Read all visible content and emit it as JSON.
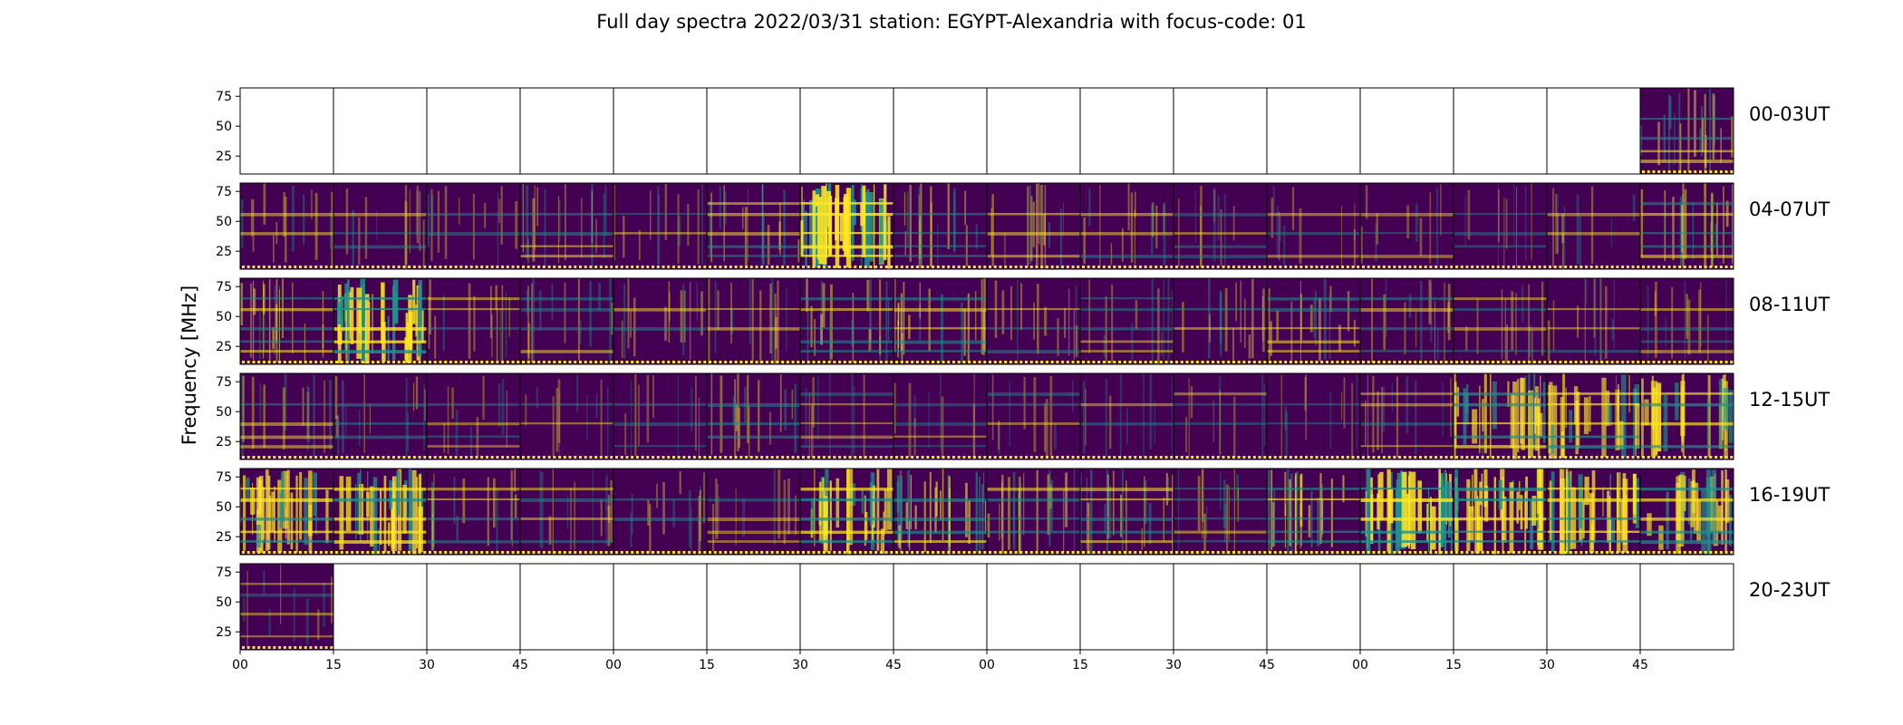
{
  "chart_data": {
    "type": "heatmap",
    "title": "Full day spectra 2022/03/31 station: EGYPT-Alexandria with focus-code: 01",
    "xlabel": "",
    "ylabel": "Frequency [MHz]",
    "ylim": [
      10,
      82
    ],
    "y_ticks": [
      "75",
      "50",
      "25"
    ],
    "y_tick_values": [
      75,
      50,
      25
    ],
    "x_ticks": [
      "00",
      "15",
      "30",
      "45",
      "00",
      "15",
      "30",
      "45",
      "00",
      "15",
      "30",
      "45",
      "00",
      "15",
      "30",
      "45"
    ],
    "colormap": "viridis",
    "colors": {
      "low": "#440154",
      "mid": "#21918c",
      "high": "#fde725",
      "frame": "#000000"
    },
    "rows": [
      {
        "label": "00-03UT",
        "filled": [
          0,
          0,
          0,
          0,
          0,
          0,
          0,
          0,
          0,
          0,
          0,
          0,
          0,
          0,
          0,
          1
        ],
        "intensity": [
          0,
          0,
          0,
          0,
          0,
          0,
          0,
          0,
          0,
          0,
          0,
          0,
          0,
          0,
          0,
          0.35
        ]
      },
      {
        "label": "04-07UT",
        "filled": [
          1,
          1,
          1,
          1,
          1,
          1,
          1,
          1,
          1,
          1,
          1,
          1,
          1,
          1,
          1,
          1
        ],
        "intensity": [
          0.2,
          0.15,
          0.15,
          0.25,
          0.15,
          0.25,
          0.9,
          0.3,
          0.25,
          0.2,
          0.1,
          0.12,
          0.1,
          0.1,
          0.15,
          0.35
        ]
      },
      {
        "label": "08-11UT",
        "filled": [
          1,
          1,
          1,
          1,
          1,
          1,
          1,
          1,
          1,
          1,
          1,
          1,
          1,
          1,
          1,
          1
        ],
        "intensity": [
          0.35,
          0.85,
          0.2,
          0.2,
          0.2,
          0.2,
          0.3,
          0.35,
          0.2,
          0.15,
          0.2,
          0.25,
          0.2,
          0.15,
          0.15,
          0.15
        ]
      },
      {
        "label": "12-15UT",
        "filled": [
          1,
          1,
          1,
          1,
          1,
          1,
          1,
          1,
          1,
          1,
          1,
          1,
          1,
          1,
          1,
          1
        ],
        "intensity": [
          0.2,
          0.2,
          0.1,
          0.12,
          0.1,
          0.25,
          0.08,
          0.08,
          0.12,
          0.1,
          0.08,
          0.1,
          0.15,
          0.6,
          0.55,
          0.55
        ]
      },
      {
        "label": "16-19UT",
        "filled": [
          1,
          1,
          1,
          1,
          1,
          1,
          1,
          1,
          1,
          1,
          1,
          1,
          1,
          1,
          1,
          1
        ],
        "intensity": [
          0.65,
          0.7,
          0.25,
          0.2,
          0.2,
          0.12,
          0.65,
          0.5,
          0.35,
          0.35,
          0.2,
          0.45,
          0.85,
          0.75,
          0.7,
          0.6
        ]
      },
      {
        "label": "20-23UT",
        "filled": [
          1,
          0,
          0,
          0,
          0,
          0,
          0,
          0,
          0,
          0,
          0,
          0,
          0,
          0,
          0,
          0
        ],
        "intensity": [
          0.1,
          0,
          0,
          0,
          0,
          0,
          0,
          0,
          0,
          0,
          0,
          0,
          0,
          0,
          0,
          0
        ]
      }
    ],
    "grid": false,
    "legend": "none"
  }
}
